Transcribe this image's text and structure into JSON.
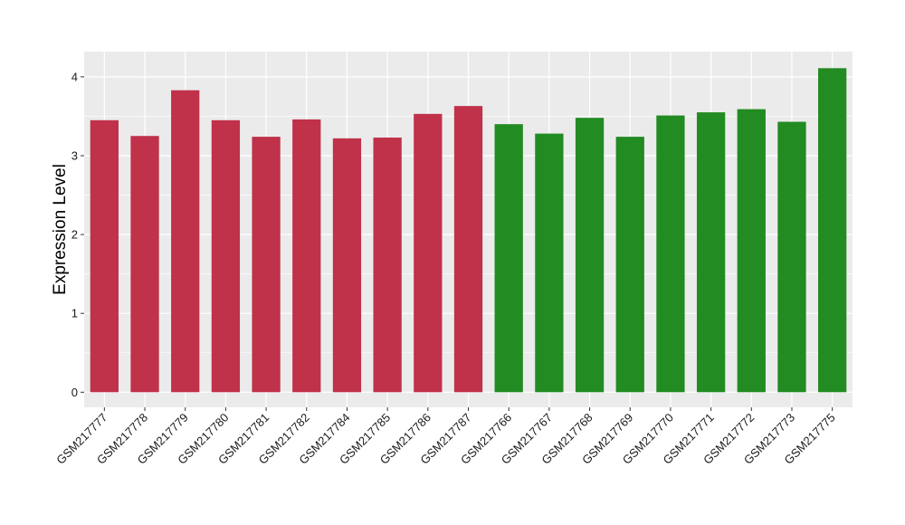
{
  "chart_data": {
    "type": "bar",
    "title": "",
    "xlabel": "",
    "ylabel": "Expression Level",
    "ylim": [
      -0.2,
      4.25
    ],
    "yticks": [
      0,
      1,
      2,
      3,
      4
    ],
    "grid": true,
    "categories": [
      "GSM217777",
      "GSM217778",
      "GSM217779",
      "GSM217780",
      "GSM217781",
      "GSM217782",
      "GSM217784",
      "GSM217785",
      "GSM217786",
      "GSM217787",
      "GSM217766",
      "GSM217767",
      "GSM217768",
      "GSM217769",
      "GSM217770",
      "GSM217771",
      "GSM217772",
      "GSM217773",
      "GSM217775"
    ],
    "values": [
      3.45,
      3.25,
      3.83,
      3.45,
      3.24,
      3.46,
      3.22,
      3.23,
      3.53,
      3.63,
      3.4,
      3.28,
      3.48,
      3.24,
      3.51,
      3.55,
      3.59,
      3.43,
      4.11
    ],
    "bar_colors": [
      "#C0314A",
      "#C0314A",
      "#C0314A",
      "#C0314A",
      "#C0314A",
      "#C0314A",
      "#C0314A",
      "#C0314A",
      "#C0314A",
      "#C0314A",
      "#228B22",
      "#228B22",
      "#228B22",
      "#228B22",
      "#228B22",
      "#228B22",
      "#228B22",
      "#228B22",
      "#228B22"
    ],
    "panel_background": "#EBEBEB",
    "gridline_color": "#FFFFFF"
  }
}
